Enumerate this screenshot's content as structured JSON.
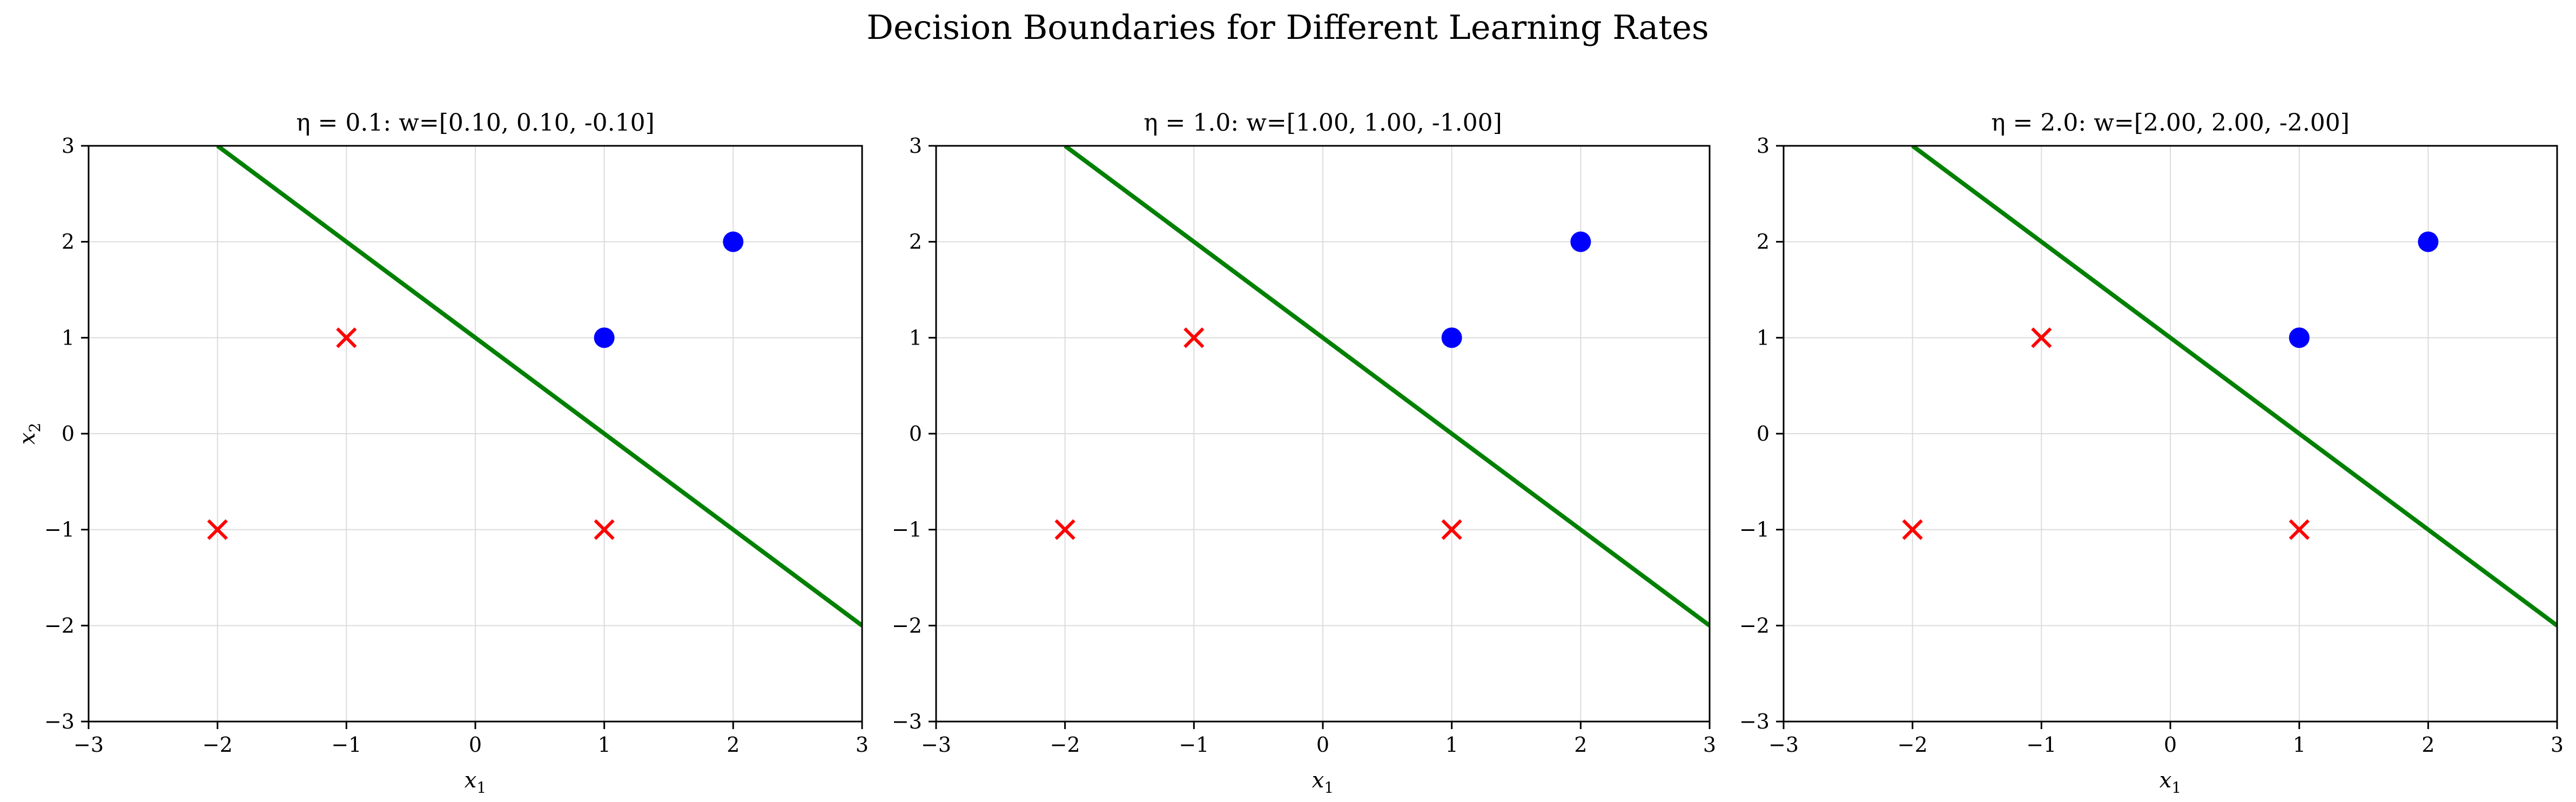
{
  "figure": {
    "title": "Decision Boundaries for Different Learning Rates"
  },
  "chart_data": [
    {
      "type": "scatter",
      "title": "η = 0.1: w=[0.10, 0.10, -0.10]",
      "xlabel": "x1",
      "ylabel": "x2",
      "xlim": [
        -3,
        3
      ],
      "ylim": [
        -3,
        3
      ],
      "xticks": [
        "−3",
        "−2",
        "−1",
        "0",
        "1",
        "2",
        "3"
      ],
      "yticks": [
        "−3",
        "−2",
        "−1",
        "0",
        "1",
        "2",
        "3"
      ],
      "grid": true,
      "series": [
        {
          "marker": "circle",
          "color": "#0000ff",
          "points": [
            [
              1,
              1
            ],
            [
              2,
              2
            ]
          ]
        },
        {
          "marker": "x",
          "color": "#ff0000",
          "points": [
            [
              -1,
              1
            ],
            [
              -2,
              -1
            ],
            [
              1,
              -1
            ]
          ]
        }
      ],
      "boundary": {
        "color": "#008000",
        "points": [
          [
            -2,
            3
          ],
          [
            3,
            -2
          ]
        ]
      }
    },
    {
      "type": "scatter",
      "title": "η = 1.0: w=[1.00, 1.00, -1.00]",
      "xlabel": "x1",
      "ylabel": "",
      "xlim": [
        -3,
        3
      ],
      "ylim": [
        -3,
        3
      ],
      "xticks": [
        "−3",
        "−2",
        "−1",
        "0",
        "1",
        "2",
        "3"
      ],
      "yticks": [
        "−3",
        "−2",
        "−1",
        "0",
        "1",
        "2",
        "3"
      ],
      "grid": true,
      "series": [
        {
          "marker": "circle",
          "color": "#0000ff",
          "points": [
            [
              1,
              1
            ],
            [
              2,
              2
            ]
          ]
        },
        {
          "marker": "x",
          "color": "#ff0000",
          "points": [
            [
              -1,
              1
            ],
            [
              -2,
              -1
            ],
            [
              1,
              -1
            ]
          ]
        }
      ],
      "boundary": {
        "color": "#008000",
        "points": [
          [
            -2,
            3
          ],
          [
            3,
            -2
          ]
        ]
      }
    },
    {
      "type": "scatter",
      "title": "η = 2.0: w=[2.00, 2.00, -2.00]",
      "xlabel": "x1",
      "ylabel": "",
      "xlim": [
        -3,
        3
      ],
      "ylim": [
        -3,
        3
      ],
      "xticks": [
        "−3",
        "−2",
        "−1",
        "0",
        "1",
        "2",
        "3"
      ],
      "yticks": [
        "−3",
        "−2",
        "−1",
        "0",
        "1",
        "2",
        "3"
      ],
      "grid": true,
      "series": [
        {
          "marker": "circle",
          "color": "#0000ff",
          "points": [
            [
              1,
              1
            ],
            [
              2,
              2
            ]
          ]
        },
        {
          "marker": "x",
          "color": "#ff0000",
          "points": [
            [
              -1,
              1
            ],
            [
              -2,
              -1
            ],
            [
              1,
              -1
            ]
          ]
        }
      ],
      "boundary": {
        "color": "#008000",
        "points": [
          [
            -2,
            3
          ],
          [
            3,
            -2
          ]
        ]
      }
    }
  ]
}
